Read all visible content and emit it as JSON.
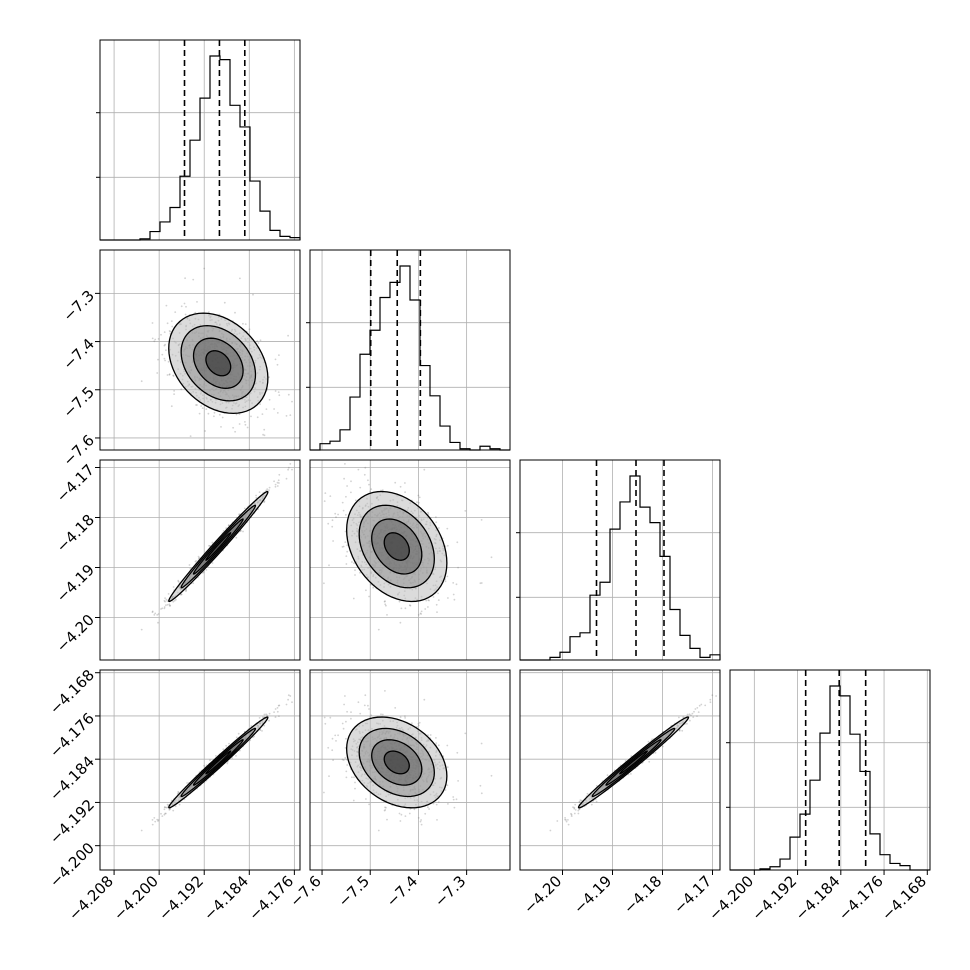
{
  "chart_data": {
    "type": "corner",
    "parameters": 4,
    "n_samples_shown": 900,
    "quantiles": [
      0.16,
      0.5,
      0.84
    ],
    "contour_levels_sigma": [
      0.5,
      1.0,
      1.5,
      2.0
    ],
    "grid": true,
    "colors": {
      "line": "#000000",
      "points": "#7f7f7f",
      "grid": "#b0b0b0"
    },
    "params": [
      {
        "index": 0,
        "mean": -4.1895,
        "sd": 0.0044,
        "range": [
          -4.2105,
          -4.175
        ],
        "ticks": [
          -4.208,
          -4.2,
          -4.192,
          -4.184,
          -4.176
        ],
        "tick_labels": [
          "−4.208",
          "−4.200",
          "−4.192",
          "−4.184",
          "−4.176"
        ],
        "quantile_values": [
          -4.1955,
          -4.1893,
          -4.1848
        ]
      },
      {
        "index": 1,
        "mean": -7.445,
        "sd": 0.052,
        "range": [
          -7.625,
          -7.21
        ],
        "ticks": [
          -7.6,
          -7.5,
          -7.4,
          -7.3
        ],
        "tick_labels": [
          "−7.6",
          "−7.5",
          "−7.4",
          "−7.3"
        ],
        "quantile_values": [
          -7.499,
          -7.444,
          -7.396
        ]
      },
      {
        "index": 2,
        "mean": -4.1858,
        "sd": 0.0055,
        "range": [
          -4.2085,
          -4.1685
        ],
        "ticks": [
          -4.2,
          -4.19,
          -4.18,
          -4.17
        ],
        "tick_labels": [
          "−4.20",
          "−4.19",
          "−4.18",
          "−4.17"
        ],
        "quantile_values": [
          -4.1932,
          -4.1853,
          -4.1797
        ]
      },
      {
        "index": 3,
        "mean": -4.1846,
        "sd": 0.0042,
        "range": [
          -4.2045,
          -4.1675
        ],
        "ticks": [
          -4.2,
          -4.192,
          -4.184,
          -4.176,
          -4.168
        ],
        "tick_labels": [
          "−4.200",
          "−4.192",
          "−4.184",
          "−4.176",
          "−4.168"
        ],
        "quantile_values": [
          -4.1905,
          -4.1843,
          -4.1794
        ]
      }
    ],
    "correlation": [
      [
        1.0,
        -0.3,
        0.99,
        0.99
      ],
      [
        -0.3,
        1.0,
        -0.3,
        -0.3
      ],
      [
        0.99,
        -0.3,
        1.0,
        0.99
      ],
      [
        0.99,
        -0.3,
        0.99,
        1.0
      ]
    ]
  }
}
